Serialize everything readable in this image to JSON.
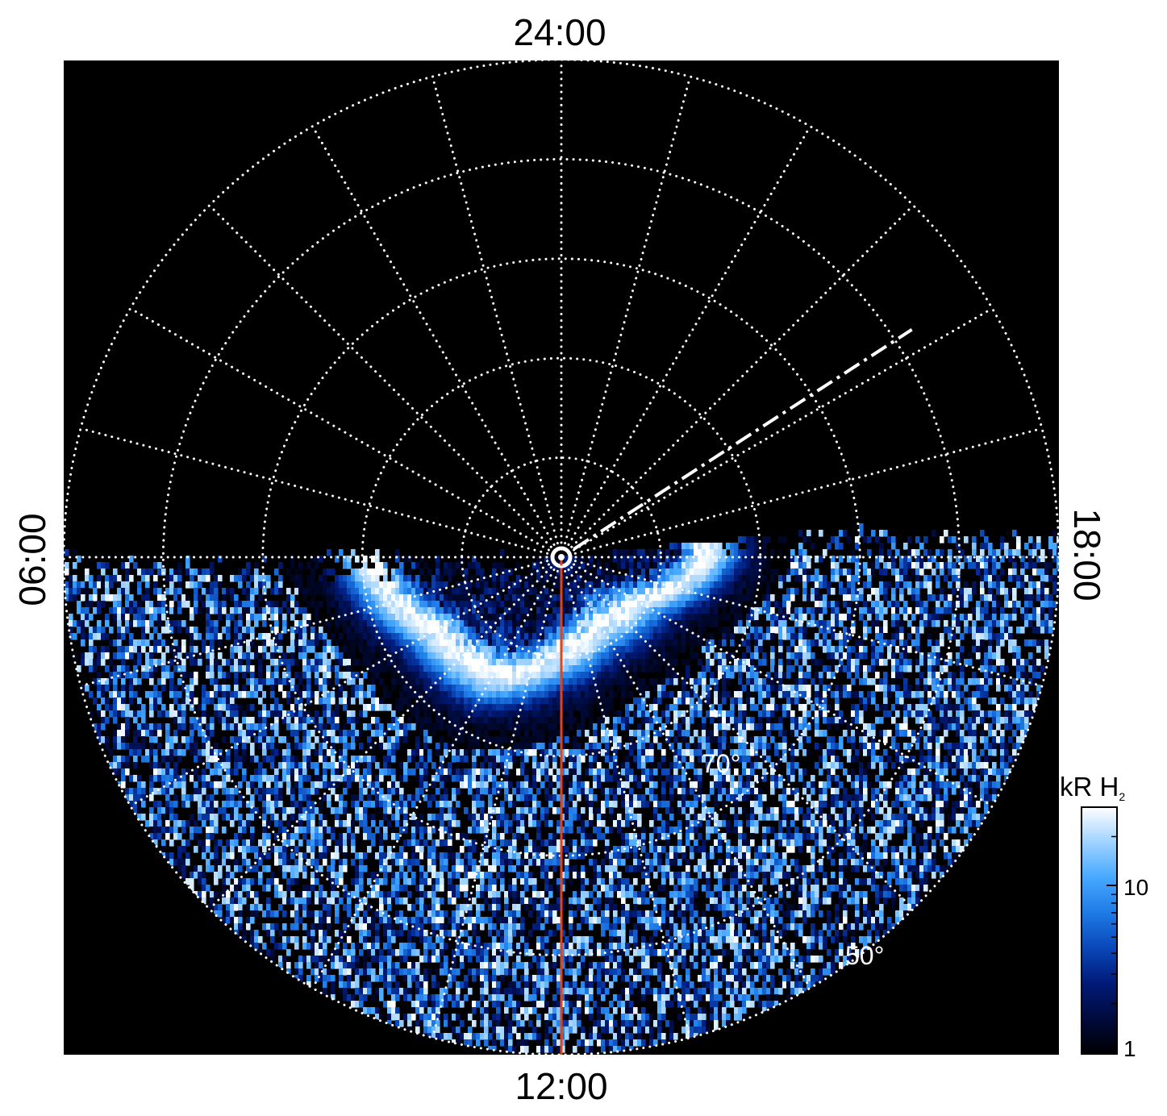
{
  "chart_data": {
    "type": "heatmap",
    "projection": "polar",
    "title": "",
    "local_time_labels": {
      "top": "24:00",
      "bottom": "12:00",
      "left": "06:00",
      "right": "18:00"
    },
    "latitude_labels": [
      {
        "text": "70°",
        "value": 70
      },
      {
        "text": "50°",
        "value": 50
      }
    ],
    "grid": {
      "shown": true,
      "style": "dotted",
      "latitude_circles_deg": [
        80,
        70,
        60,
        50,
        40
      ],
      "local_time_meridians_hours": [
        0,
        1,
        2,
        3,
        4,
        5,
        6,
        7,
        8,
        9,
        10,
        11,
        12,
        13,
        14,
        15,
        16,
        17,
        18,
        19,
        20,
        21,
        22,
        23
      ]
    },
    "lat_range": [
      40,
      90
    ],
    "highlighted_meridian_lt": 12,
    "dashed_meridian_lt": 20.2,
    "colorbar": {
      "label": "kR H",
      "label_subscript": "2",
      "scale": "log",
      "ticks": [
        {
          "value": 1,
          "label": "1"
        },
        {
          "value": 10,
          "label": "10"
        }
      ],
      "range": [
        1,
        30
      ],
      "colors": [
        "#000000",
        "#000a3c",
        "#001a78",
        "#0a47b8",
        "#1e7ae6",
        "#46a8ff",
        "#9fd2ff",
        "#ffffff"
      ]
    },
    "emission_coverage": "observed region is the dayside hemisphere (local times ~06:00 through 12:00 to 18:00); nightside is black",
    "auroral_oval": {
      "description": "bright band of H2 emission (>20 kR) encircling the pole on the dayside",
      "colatitude_deg_by_local_time": [
        [
          6,
          20
        ],
        [
          8,
          15
        ],
        [
          10,
          14
        ],
        [
          12,
          10
        ],
        [
          14,
          8
        ],
        [
          16,
          9
        ],
        [
          18,
          15
        ]
      ]
    }
  }
}
